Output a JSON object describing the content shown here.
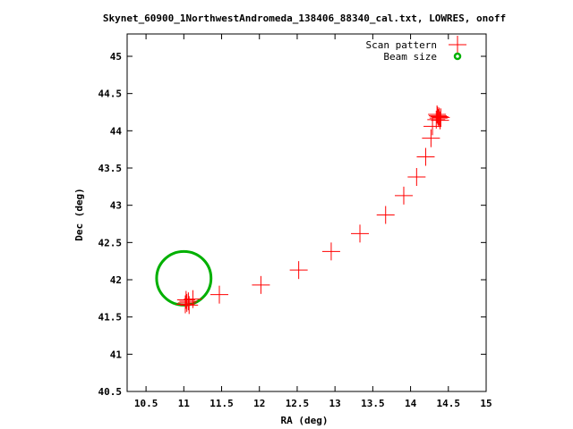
{
  "chart_data": {
    "type": "scatter",
    "title": "Skynet_60900_1NorthwestAndromeda_138406_88340_cal.txt, LOWRES, onoff",
    "xlabel": "RA (deg)",
    "ylabel": "Dec (deg)",
    "xlim": [
      10.25,
      15.0
    ],
    "ylim": [
      40.5,
      45.3
    ],
    "x_ticks": [
      "10.5",
      "11",
      "11.5",
      "12",
      "12.5",
      "13",
      "13.5",
      "14",
      "14.5",
      "15"
    ],
    "y_ticks": [
      "40.5",
      "41",
      "41.5",
      "42",
      "42.5",
      "43",
      "43.5",
      "44",
      "44.5",
      "45"
    ],
    "legend_position": "top-right",
    "grid": false,
    "series": [
      {
        "name": "Scan pattern",
        "color": "#ff0000",
        "marker": "plus",
        "points": [
          [
            11.02,
            41.67
          ],
          [
            11.04,
            41.69
          ],
          [
            11.06,
            41.71
          ],
          [
            11.03,
            41.73
          ],
          [
            11.07,
            41.66
          ],
          [
            11.12,
            41.74
          ],
          [
            11.47,
            41.8
          ],
          [
            12.02,
            41.93
          ],
          [
            12.52,
            42.13
          ],
          [
            12.95,
            42.38
          ],
          [
            13.33,
            42.62
          ],
          [
            13.67,
            42.87
          ],
          [
            13.91,
            43.13
          ],
          [
            14.08,
            43.38
          ],
          [
            14.2,
            43.65
          ],
          [
            14.27,
            43.9
          ],
          [
            14.29,
            44.06
          ],
          [
            14.34,
            44.15
          ],
          [
            14.37,
            44.17
          ],
          [
            14.38,
            44.19
          ],
          [
            14.36,
            44.2
          ],
          [
            14.39,
            44.14
          ],
          [
            14.35,
            44.22
          ],
          [
            14.4,
            44.18
          ]
        ]
      },
      {
        "name": "Beam size",
        "color": "#00b000",
        "marker": "circle",
        "center": [
          11.0,
          42.02
        ],
        "radius_deg": 0.36
      }
    ]
  }
}
